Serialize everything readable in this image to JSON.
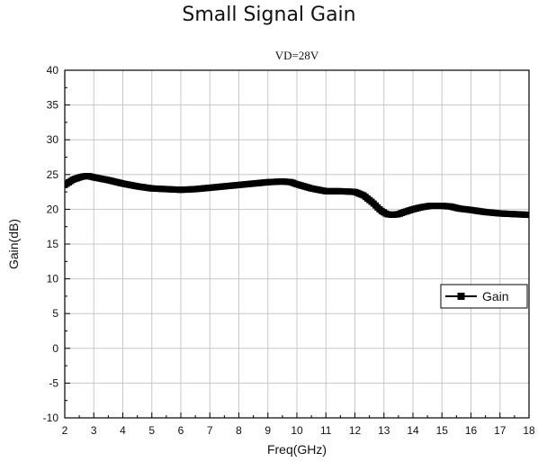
{
  "chart_data": {
    "type": "line",
    "title": "Small Signal Gain",
    "subtitle": "VD=28V",
    "xlabel": "Freq(GHz)",
    "ylabel": "Gain(dB)",
    "xlim": [
      2,
      18
    ],
    "ylim": [
      -10,
      40
    ],
    "xticks": [
      2,
      3,
      4,
      5,
      6,
      7,
      8,
      9,
      10,
      11,
      12,
      13,
      14,
      15,
      16,
      17,
      18
    ],
    "yticks": [
      -10,
      -5,
      0,
      5,
      10,
      15,
      20,
      25,
      30,
      35,
      40
    ],
    "grid": true,
    "legend": "right",
    "series": [
      {
        "name": "Gain",
        "color": "#000000",
        "marker": "square",
        "x": [
          2.0,
          2.3,
          2.6,
          2.8,
          3.0,
          3.5,
          4.0,
          4.5,
          5.0,
          5.5,
          6.0,
          6.5,
          7.0,
          7.5,
          8.0,
          8.5,
          9.0,
          9.5,
          9.8,
          10.0,
          10.5,
          11.0,
          11.5,
          12.0,
          12.3,
          12.6,
          12.9,
          13.1,
          13.3,
          13.5,
          13.7,
          14.0,
          14.3,
          14.6,
          15.0,
          15.3,
          15.6,
          16.0,
          16.5,
          17.0,
          17.5,
          18.0
        ],
        "y": [
          23.5,
          24.3,
          24.7,
          24.8,
          24.6,
          24.2,
          23.7,
          23.3,
          23.0,
          22.9,
          22.8,
          22.9,
          23.1,
          23.3,
          23.5,
          23.7,
          23.9,
          24.0,
          23.9,
          23.6,
          23.0,
          22.6,
          22.6,
          22.5,
          22.0,
          21.0,
          19.8,
          19.3,
          19.2,
          19.3,
          19.6,
          20.0,
          20.3,
          20.5,
          20.5,
          20.4,
          20.1,
          19.9,
          19.6,
          19.4,
          19.3,
          19.2
        ]
      }
    ]
  }
}
